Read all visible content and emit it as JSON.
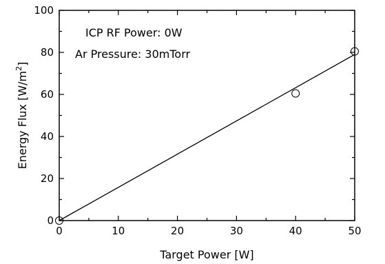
{
  "chart_data": {
    "type": "scatter",
    "xlabel": "Target Power [W]",
    "ylabel": "Energy Flux [W/m",
    "ylabel_sup": "2",
    "ylabel_end": "]",
    "xlim": [
      0,
      50
    ],
    "ylim": [
      0,
      100
    ],
    "x_ticks": [
      0,
      10,
      20,
      30,
      40,
      50
    ],
    "y_ticks": [
      0,
      20,
      40,
      60,
      80,
      100
    ],
    "grid": false,
    "annotations": [
      "ICP RF Power: 0W",
      "Ar Pressure: 30mTorr"
    ],
    "series": [
      {
        "marker": "open-circle",
        "x": [
          0,
          40,
          50
        ],
        "y": [
          0,
          60.5,
          80.5
        ]
      }
    ],
    "fit_line": {
      "x": [
        0,
        50
      ],
      "y": [
        0,
        79
      ]
    }
  }
}
